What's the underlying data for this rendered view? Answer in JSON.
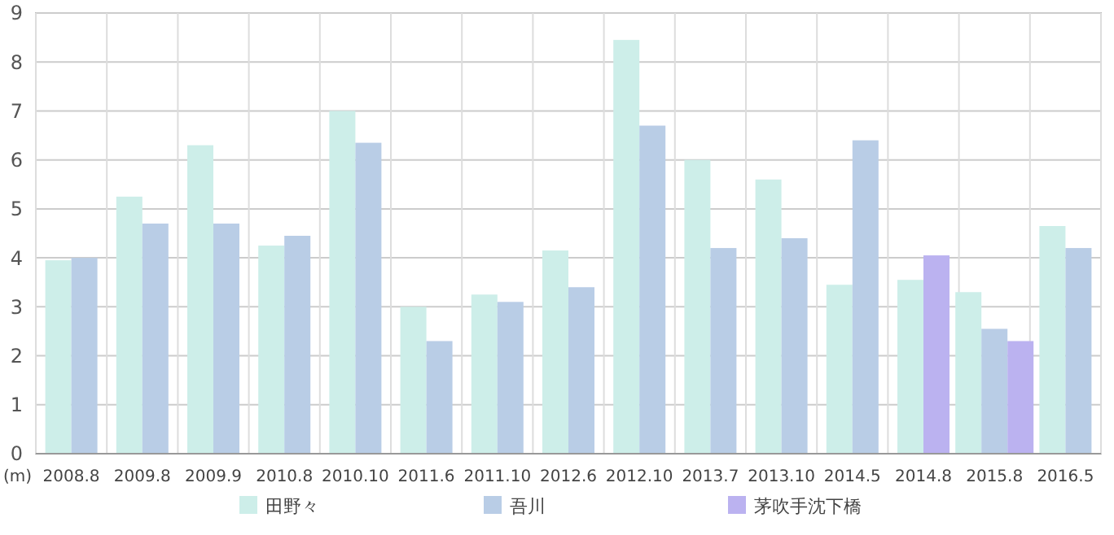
{
  "chart_data": {
    "type": "bar",
    "ylabel": "(m)",
    "categories": [
      "2008.8",
      "2009.8",
      "2009.9",
      "2010.8",
      "2010.10",
      "2011.6",
      "2011.10",
      "2012.6",
      "2012.10",
      "2013.7",
      "2013.10",
      "2014.5",
      "2014.8",
      "2015.8",
      "2016.5"
    ],
    "series": [
      {
        "name": "田野々",
        "color": "#cdeee9",
        "values": [
          3.95,
          5.25,
          6.3,
          4.25,
          7.0,
          3.0,
          3.25,
          4.15,
          8.45,
          6.0,
          5.6,
          3.45,
          3.55,
          3.3,
          4.65
        ]
      },
      {
        "name": "吾川",
        "color": "#b9cde6",
        "values": [
          4.0,
          4.7,
          4.7,
          4.45,
          6.35,
          2.3,
          3.1,
          3.4,
          6.7,
          4.2,
          4.4,
          6.4,
          null,
          2.55,
          4.2
        ]
      },
      {
        "name": "茅吹手沈下橋",
        "color": "#bbb2f0",
        "values": [
          null,
          null,
          null,
          null,
          null,
          null,
          null,
          null,
          null,
          null,
          null,
          null,
          4.05,
          2.3,
          null
        ]
      }
    ],
    "ylim": [
      0,
      9
    ],
    "yticks": [
      0,
      1,
      2,
      3,
      4,
      5,
      6,
      7,
      8,
      9
    ],
    "grid": true,
    "legend": "bottom"
  }
}
